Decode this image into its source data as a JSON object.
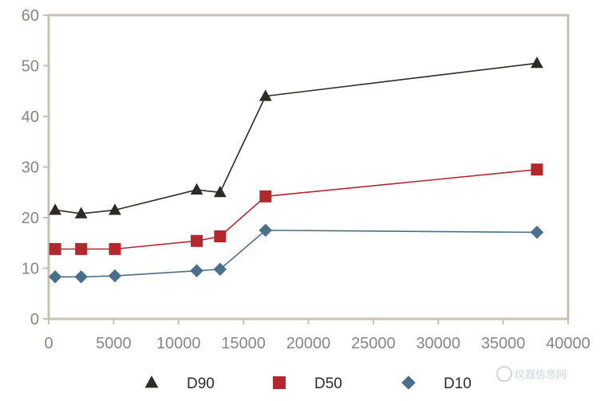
{
  "chart_data": {
    "type": "line",
    "title": "",
    "xlabel": "",
    "ylabel": "",
    "xlim": [
      0,
      40000
    ],
    "ylim": [
      0,
      60
    ],
    "xticks": [
      0,
      5000,
      10000,
      15000,
      20000,
      25000,
      30000,
      35000,
      40000
    ],
    "yticks": [
      0,
      10,
      20,
      30,
      40,
      50,
      60
    ],
    "grid": false,
    "legend_position": "bottom",
    "x": [
      500,
      2500,
      5100,
      11400,
      13200,
      16700,
      37600
    ],
    "series": [
      {
        "name": "D90",
        "marker": "triangle",
        "color": "#2e2a26",
        "line_color": "#2e2a26",
        "values": [
          21.5,
          20.8,
          21.5,
          25.5,
          25.0,
          44.0,
          50.5
        ]
      },
      {
        "name": "D50",
        "marker": "square",
        "color": "#b3282d",
        "line_color": "#b3282d",
        "values": [
          13.8,
          13.8,
          13.8,
          15.4,
          16.3,
          24.2,
          29.5
        ]
      },
      {
        "name": "D10",
        "marker": "diamond",
        "color": "#4a6f8a",
        "line_color": "#4a6f8a",
        "values": [
          8.3,
          8.3,
          8.5,
          9.5,
          9.8,
          17.5,
          17.1
        ]
      }
    ]
  },
  "watermark": {
    "text": "仪器信息网"
  },
  "colors": {
    "axis_frame": "#c9bfb3",
    "tick_text": "#8a8680"
  }
}
